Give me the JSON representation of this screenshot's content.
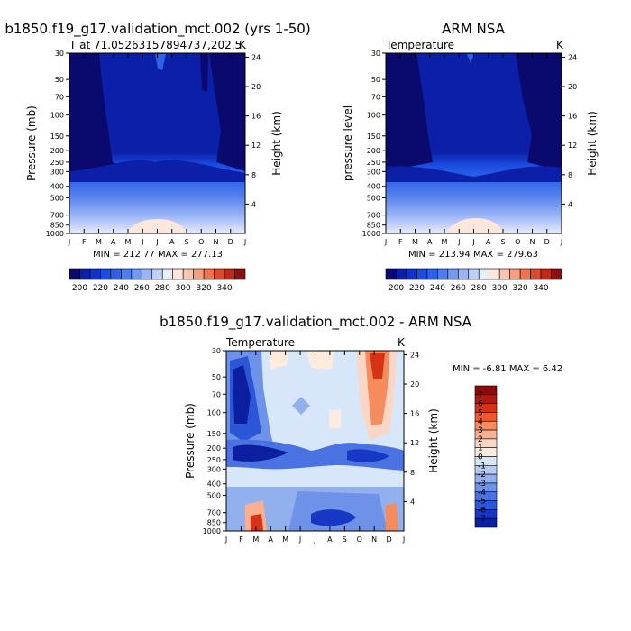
{
  "chart_data": [
    {
      "type": "heatmap",
      "title": "b1850.f19_g17.validation_mct.002 (yrs 1-50)",
      "subtitle_left": "T at 71.05263157894737,202.5",
      "subtitle_right": "K",
      "ylabel": "Pressure (mb)",
      "ylabel_right": "Height (km)",
      "months": [
        "J",
        "F",
        "M",
        "A",
        "M",
        "J",
        "J",
        "A",
        "S",
        "O",
        "N",
        "D",
        "J"
      ],
      "pressure_ticks": [
        "30",
        "50",
        "70",
        "100",
        "150",
        "200",
        "250",
        "300",
        "400",
        "500",
        "700",
        "850",
        "1000"
      ],
      "height_ticks": [
        "4",
        "8",
        "12",
        "16",
        "20",
        "24"
      ],
      "stats": "MIN = 212.77  MAX = 277.13",
      "colorbar_labels": [
        "200",
        "220",
        "240",
        "260",
        "280",
        "300",
        "320",
        "340"
      ]
    },
    {
      "type": "heatmap",
      "title": "ARM NSA",
      "subtitle_left": "Temperature",
      "subtitle_right": "K",
      "ylabel": "pressure level",
      "ylabel_right": "Height (km)",
      "months": [
        "J",
        "F",
        "M",
        "A",
        "M",
        "J",
        "J",
        "A",
        "S",
        "O",
        "N",
        "D",
        "J"
      ],
      "pressure_ticks": [
        "30",
        "50",
        "70",
        "100",
        "150",
        "200",
        "250",
        "300",
        "400",
        "500",
        "700",
        "850",
        "1000"
      ],
      "height_ticks": [
        "4",
        "8",
        "12",
        "16",
        "20",
        "24"
      ],
      "stats": "MIN = 213.94  MAX = 279.63",
      "colorbar_labels": [
        "200",
        "220",
        "240",
        "260",
        "280",
        "300",
        "320",
        "340"
      ]
    },
    {
      "type": "heatmap",
      "title": "b1850.f19_g17.validation_mct.002 - ARM NSA",
      "subtitle_left": "Temperature",
      "subtitle_right": "K",
      "ylabel": "Pressure (mb)",
      "ylabel_right": "Height (km)",
      "months": [
        "J",
        "F",
        "M",
        "A",
        "M",
        "J",
        "J",
        "A",
        "S",
        "O",
        "N",
        "D",
        "J"
      ],
      "pressure_ticks": [
        "30",
        "50",
        "70",
        "100",
        "150",
        "200",
        "250",
        "300",
        "400",
        "500",
        "700",
        "850",
        "1000"
      ],
      "height_ticks": [
        "4",
        "8",
        "12",
        "16",
        "20",
        "24"
      ],
      "stats": "MIN =   -6.81  MAX =    6.42",
      "colorbar_labels": [
        "7",
        "6",
        "5",
        "4",
        "3",
        "2",
        "1",
        "0",
        "-1",
        "-2",
        "-3",
        "-4",
        "-5",
        "-6",
        "-7"
      ]
    }
  ],
  "colors": {
    "abs_scale": [
      "#0a0a6e",
      "#0b1fa8",
      "#0d33c8",
      "#1a4de0",
      "#2f62e8",
      "#4f7cee",
      "#7398f2",
      "#9ab4f6",
      "#c0d0fa",
      "#e6eefc",
      "#fde6dc",
      "#f8c6b0",
      "#f4a080",
      "#ee7450",
      "#e0482a",
      "#c02818",
      "#8c1010"
    ],
    "diff_scale": [
      "#8c0a0a",
      "#b01a10",
      "#d63214",
      "#ee5a2e",
      "#f58c5e",
      "#f8b092",
      "#fbd6c4",
      "#fdecde",
      "#d8e6fa",
      "#b6ccf4",
      "#93b0ee",
      "#6e92e8",
      "#4a72e2",
      "#2c56d8",
      "#1638c4",
      "#0c1fa0"
    ]
  }
}
